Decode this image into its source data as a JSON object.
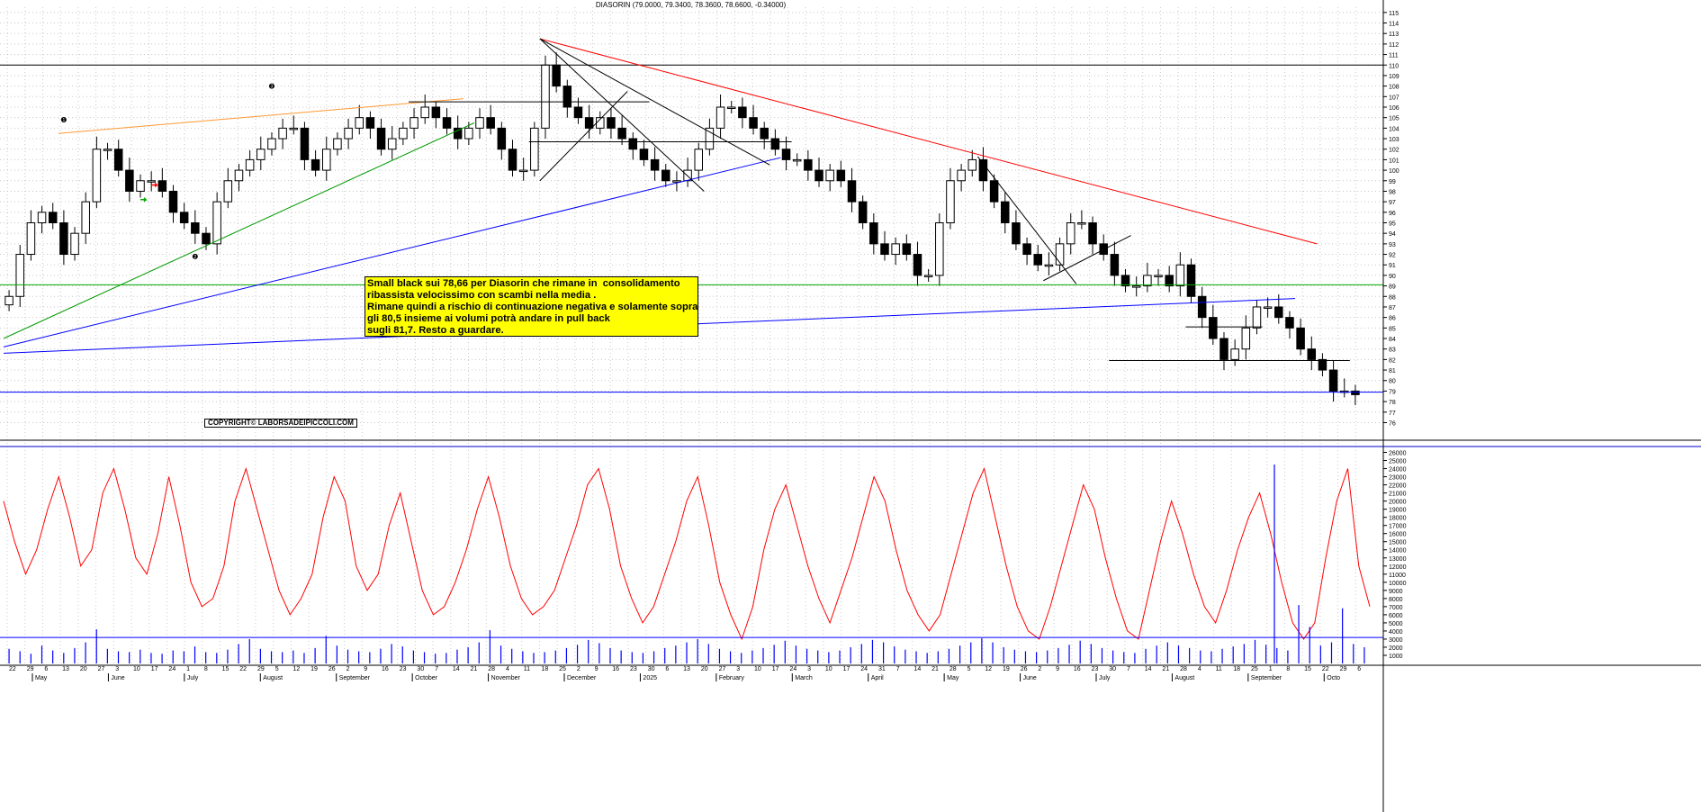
{
  "title": "DIASORIN (79.0000, 79.3400, 78.3600, 78.6600, -0.34000)",
  "annotation": "Small black sui 78,66 per Diasorin che rimane in  consolidamento\nribassista velocissimo con scambi nella media .\nRimane quindi a rischio di continuazione negativa e solamente sopra\ngli 80,5 insieme ai volumi potrà andare in pull back\nsugli 81,7. Resto a guardare.",
  "copyright": "COPYRIGHT© LABORSADEIPICCOLI.COM",
  "colors": {
    "candle": "#000000",
    "oscillator": "#ff0000",
    "volume": "#0000ff",
    "grid": "#c8c8c8",
    "annotation_bg": "#ffff00"
  },
  "chart_data": [
    {
      "type": "candlestick",
      "title": "DIASORIN (79.0000, 79.3400, 78.3600, 78.6600, -0.34000)",
      "ylim": [
        74.5,
        115.5
      ],
      "yticks": [
        76,
        77,
        78,
        79,
        80,
        81,
        82,
        83,
        84,
        85,
        86,
        87,
        88,
        89,
        90,
        91,
        92,
        93,
        94,
        95,
        96,
        97,
        98,
        99,
        100,
        101,
        102,
        103,
        104,
        105,
        106,
        107,
        108,
        109,
        110,
        111,
        112,
        113,
        114,
        115
      ],
      "last": {
        "open": 79.0,
        "high": 79.34,
        "low": 78.36,
        "close": 78.66,
        "change": -0.34
      },
      "closes": [
        88,
        92,
        95,
        96,
        95,
        92,
        94,
        97,
        102,
        102,
        100,
        98,
        99,
        99,
        98,
        96,
        95,
        94,
        93,
        97,
        99,
        100,
        101,
        102,
        103,
        104,
        104,
        101,
        100,
        102,
        103,
        104,
        105,
        104,
        102,
        103,
        104,
        105,
        106,
        105,
        104,
        103,
        104,
        105,
        104,
        102,
        100,
        100,
        104,
        110,
        108,
        106,
        105,
        104,
        105,
        104,
        103,
        102,
        101,
        100,
        99,
        99,
        100,
        102,
        104,
        106,
        106,
        105,
        104,
        103,
        102,
        101,
        101,
        100,
        99,
        100,
        99,
        97,
        95,
        93,
        92,
        93,
        92,
        90,
        90,
        95,
        99,
        100,
        101,
        99,
        97,
        95,
        93,
        92,
        91,
        91,
        93,
        95,
        95,
        93,
        92,
        90,
        89,
        89,
        90,
        90,
        89,
        91,
        88,
        86,
        84,
        82,
        83,
        85,
        87,
        87,
        86,
        85,
        83,
        82,
        81,
        79,
        79,
        78.66
      ],
      "horizontal_levels": [
        {
          "value": 110,
          "color": "#000000"
        },
        {
          "value": 78.9,
          "color": "#0000ff"
        },
        {
          "value": 89.1,
          "color": "#00aa00"
        }
      ],
      "wave_labels": [
        "1",
        "2",
        "3"
      ],
      "x_month_labels": [
        "May",
        "June",
        "July",
        "August",
        "September",
        "October",
        "November",
        "December",
        "2025",
        "February",
        "March",
        "April",
        "May",
        "June",
        "July",
        "August",
        "September",
        "Octo"
      ],
      "x_day_labels": [
        "22",
        "29",
        "6",
        "13",
        "20",
        "27",
        "3",
        "10",
        "17",
        "24",
        "1",
        "8",
        "15",
        "22",
        "29",
        "5",
        "12",
        "19",
        "26",
        "2",
        "9",
        "16",
        "23",
        "30",
        "7",
        "14",
        "21",
        "28",
        "4",
        "11",
        "18",
        "25",
        "2",
        "9",
        "16",
        "23",
        "30",
        "6",
        "13",
        "20",
        "27",
        "3",
        "10",
        "17",
        "24",
        "3",
        "10",
        "17",
        "24",
        "31",
        "7",
        "14",
        "21",
        "28",
        "5",
        "12",
        "19",
        "26",
        "2",
        "9",
        "16",
        "23",
        "30",
        "7",
        "14",
        "21",
        "28",
        "4",
        "11",
        "18",
        "25",
        "1",
        "8",
        "15",
        "22",
        "29",
        "6"
      ]
    },
    {
      "type": "line",
      "name": "",
      "ylim": [
        0,
        26500
      ],
      "yticks": [
        1000,
        2000,
        3000,
        4000,
        5000,
        6000,
        7000,
        8000,
        9000,
        10000,
        11000,
        12000,
        13000,
        14000,
        15000,
        16000,
        17000,
        18000,
        19000,
        20000,
        21000,
        22000,
        23000,
        24000,
        25000,
        26000
      ],
      "values": [
        20000,
        15000,
        11000,
        14000,
        19000,
        23000,
        18000,
        12000,
        14000,
        21000,
        24000,
        19000,
        13000,
        11000,
        16000,
        23000,
        17000,
        10000,
        7000,
        8000,
        12000,
        20000,
        24000,
        19000,
        14000,
        9000,
        6000,
        8000,
        11000,
        18000,
        23000,
        20000,
        12000,
        9000,
        11000,
        17000,
        21000,
        15000,
        9000,
        6000,
        7000,
        10000,
        14000,
        19000,
        23000,
        18000,
        12000,
        8000,
        6000,
        7000,
        9000,
        13000,
        17000,
        22000,
        24000,
        19000,
        12000,
        8000,
        5000,
        7000,
        11000,
        15000,
        20000,
        23000,
        17000,
        10000,
        6000,
        3000,
        7000,
        14000,
        19000,
        22000,
        17000,
        12000,
        8000,
        5000,
        9000,
        13000,
        18000,
        23000,
        20000,
        14000,
        9000,
        6000,
        4000,
        6000,
        11000,
        16000,
        21000,
        24000,
        18000,
        12000,
        7000,
        4000,
        3000,
        7000,
        12000,
        17000,
        22000,
        19000,
        13000,
        8000,
        4000,
        3000,
        9000,
        15000,
        20000,
        16000,
        11000,
        7000,
        5000,
        9000,
        14000,
        18000,
        21000,
        16000,
        10000,
        5000,
        3000,
        5000,
        13000,
        20000,
        24000,
        12000,
        7000
      ],
      "volume_reference": 3200
    },
    {
      "type": "bar",
      "name": "",
      "values": [
        1800,
        1500,
        1200,
        2200,
        1600,
        1300,
        1900,
        2600,
        4200,
        1800,
        1500,
        1400,
        1700,
        1300,
        1200,
        1600,
        1500,
        2100,
        1400,
        1300,
        1700,
        2400,
        3000,
        1800,
        1500,
        1400,
        1600,
        1300,
        1900,
        3400,
        2200,
        1700,
        1500,
        1400,
        1800,
        2400,
        2100,
        1600,
        1400,
        1200,
        1300,
        1700,
        2000,
        2600,
        4100,
        2200,
        1800,
        1500,
        1300,
        1400,
        1600,
        1900,
        2300,
        2900,
        2500,
        1900,
        1600,
        1400,
        1300,
        1500,
        1900,
        2200,
        2600,
        3000,
        2400,
        1800,
        1500,
        1300,
        1600,
        1900,
        2300,
        2800,
        2200,
        1800,
        1600,
        1400,
        1600,
        2000,
        2400,
        2900,
        2600,
        2100,
        1700,
        1500,
        1300,
        1500,
        1800,
        2200,
        2600,
        3100,
        2600,
        2000,
        1700,
        1500,
        1400,
        1600,
        1900,
        2300,
        2800,
        2400,
        1900,
        1600,
        1400,
        1300,
        1800,
        2200,
        2600,
        2200,
        1900,
        1600,
        1500,
        1800,
        2100,
        2400,
        2900,
        2300,
        1900,
        1600,
        7200,
        4500,
        2200,
        2600,
        6800,
        2400,
        2000
      ]
    }
  ]
}
